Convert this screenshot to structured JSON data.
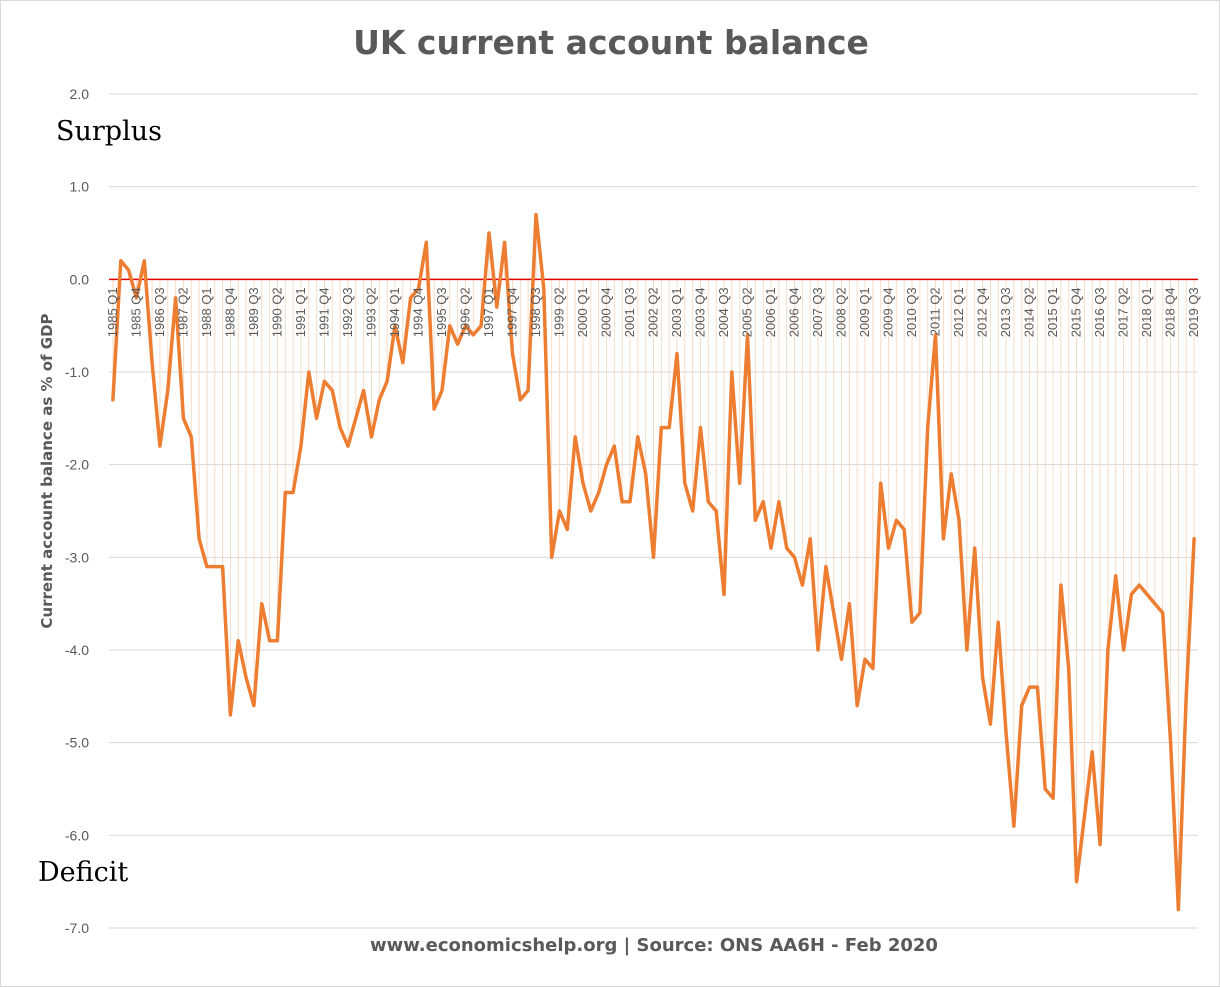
{
  "chart_data": {
    "type": "line",
    "title": "UK current account balance",
    "ylabel": "Current account balance as % of GDP",
    "xlabel": "",
    "ylim": [
      -7.0,
      2.0
    ],
    "y_ticks": [
      "2.0",
      "1.0",
      "0.0",
      "-1.0",
      "-2.0",
      "-3.0",
      "-4.0",
      "-5.0",
      "-6.0",
      "-7.0"
    ],
    "y_tick_values": [
      2.0,
      1.0,
      0.0,
      -1.0,
      -2.0,
      -3.0,
      -4.0,
      -5.0,
      -6.0,
      -7.0
    ],
    "grid": true,
    "zero_line_color": "#e00000",
    "series_color": "#ed7d31",
    "start_year": 1985,
    "start_quarter": 1,
    "x_tick_labels": [
      "1985 Q1",
      "1985 Q4",
      "1986 Q3",
      "1987 Q2",
      "1988 Q1",
      "1988 Q4",
      "1989 Q3",
      "1990 Q2",
      "1991 Q1",
      "1991 Q4",
      "1992 Q3",
      "1993 Q2",
      "1994 Q1",
      "1994 Q4",
      "1995 Q3",
      "1996 Q2",
      "1997 Q1",
      "1997 Q4",
      "1998 Q3",
      "1999 Q2",
      "2000 Q1",
      "2000 Q4",
      "2001 Q3",
      "2002 Q2",
      "2003 Q1",
      "2003 Q4",
      "2004 Q3",
      "2005 Q2",
      "2006 Q1",
      "2006 Q4",
      "2007 Q3",
      "2008 Q2",
      "2009 Q1",
      "2009 Q4",
      "2010 Q3",
      "2011 Q2",
      "2012 Q1",
      "2012 Q4",
      "2013 Q3",
      "2014 Q2",
      "2015 Q1",
      "2015 Q4",
      "2016 Q3",
      "2017 Q2",
      "2018 Q1",
      "2018 Q4",
      "2019 Q3"
    ],
    "series": [
      {
        "values": [
          -1.3,
          0.2,
          0.1,
          -0.2,
          0.2,
          -0.9,
          -1.8,
          -1.2,
          -0.2,
          -1.5,
          -1.7,
          -2.8,
          -3.1,
          -3.1,
          -3.1,
          -4.7,
          -3.9,
          -4.3,
          -4.6,
          -3.5,
          -3.9,
          -3.9,
          -2.3,
          -2.3,
          -1.8,
          -1.0,
          -1.5,
          -1.1,
          -1.2,
          -1.6,
          -1.8,
          -1.5,
          -1.2,
          -1.7,
          -1.3,
          -1.1,
          -0.5,
          -0.9,
          -0.2,
          -0.1,
          0.4,
          -1.4,
          -1.2,
          -0.5,
          -0.7,
          -0.5,
          -0.6,
          -0.5,
          0.5,
          -0.3,
          0.4,
          -0.8,
          -1.3,
          -1.2,
          0.7,
          -0.1,
          -3.0,
          -2.5,
          -2.7,
          -1.7,
          -2.2,
          -2.5,
          -2.3,
          -2.0,
          -1.8,
          -2.4,
          -2.4,
          -1.7,
          -2.1,
          -3.0,
          -1.6,
          -1.6,
          -0.8,
          -2.2,
          -2.5,
          -1.6,
          -2.4,
          -2.5,
          -3.4,
          -1.0,
          -2.2,
          -0.6,
          -2.6,
          -2.4,
          -2.9,
          -2.4,
          -2.9,
          -3.0,
          -3.3,
          -2.8,
          -4.0,
          -3.1,
          -3.6,
          -4.1,
          -3.5,
          -4.6,
          -4.1,
          -4.2,
          -2.2,
          -2.9,
          -2.6,
          -2.7,
          -3.7,
          -3.6,
          -1.6,
          -0.6,
          -2.8,
          -2.1,
          -2.6,
          -4.0,
          -2.9,
          -4.3,
          -4.8,
          -3.7,
          -4.9,
          -5.9,
          -4.6,
          -4.4,
          -4.4,
          -5.5,
          -5.6,
          -3.3,
          -4.2,
          -6.5,
          -5.8,
          -5.1,
          -6.1,
          -4.0,
          -3.2,
          -4.0,
          -3.4,
          -3.3,
          -3.4,
          -3.5,
          -3.6,
          -5.0,
          -6.8,
          -4.5,
          -2.8
        ]
      }
    ]
  },
  "annotations": {
    "surplus": "Surplus",
    "deficit": "Deficit"
  },
  "footer": "www.economicshelp.org | Source: ONS AA6H - Feb 2020"
}
